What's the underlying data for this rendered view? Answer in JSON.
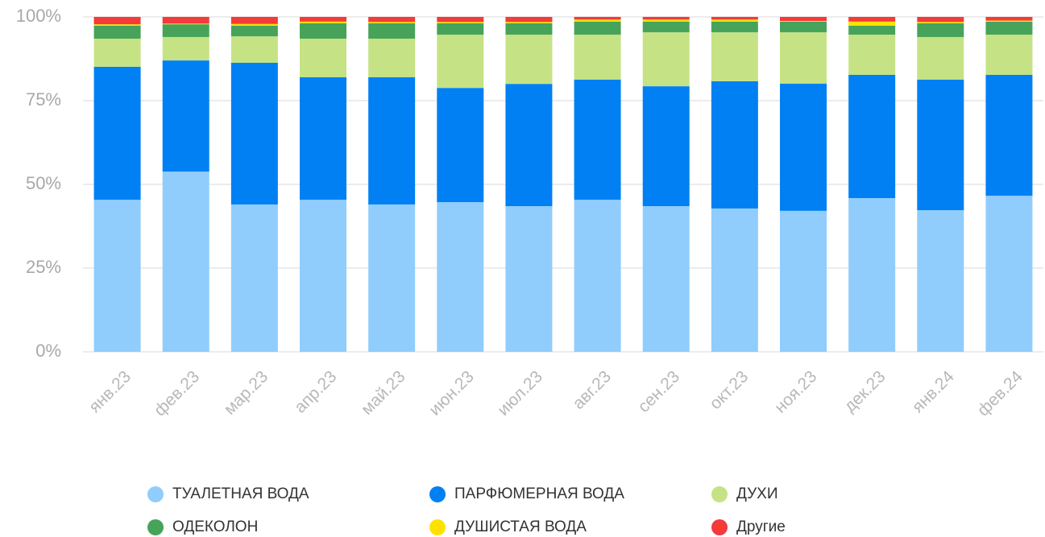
{
  "chart_data": {
    "type": "stacked_bar_percent",
    "categories": [
      "янв.23",
      "фев.23",
      "мар.23",
      "апр.23",
      "май.23",
      "июн.23",
      "июл.23",
      "авг.23",
      "сен.23",
      "окт.23",
      "ноя.23",
      "дек.23",
      "янв.24",
      "фев.24"
    ],
    "series": [
      {
        "name": "ТУАЛЕТНАЯ ВОДА",
        "color": "#90cdfc",
        "values": [
          45.4,
          53.8,
          44.0,
          45.4,
          44.0,
          44.7,
          43.5,
          45.4,
          43.5,
          42.8,
          42.1,
          45.9,
          42.3,
          46.6
        ]
      },
      {
        "name": "ПАРФЮМЕРНАЯ ВОДА",
        "color": "#0080f2",
        "values": [
          39.7,
          33.2,
          42.3,
          36.6,
          38.0,
          34.1,
          36.5,
          35.9,
          35.8,
          38.0,
          38.0,
          36.8,
          39.0,
          36.1
        ]
      },
      {
        "name": "ДУХИ",
        "color": "#c5e384",
        "values": [
          8.4,
          7.0,
          7.9,
          11.5,
          11.5,
          15.9,
          14.7,
          13.4,
          16.1,
          14.6,
          15.3,
          12.0,
          12.7,
          12.0
        ]
      },
      {
        "name": "ОДЕКОЛОН",
        "color": "#47a35a",
        "values": [
          3.9,
          3.8,
          3.2,
          4.6,
          4.6,
          3.4,
          3.4,
          3.9,
          3.2,
          3.2,
          3.2,
          2.7,
          4.1,
          3.9
        ]
      },
      {
        "name": "ДУШИСТАЯ ВОДА",
        "color": "#ffe100",
        "values": [
          0.4,
          0.2,
          0.5,
          0.5,
          0.4,
          0.4,
          0.4,
          0.6,
          0.6,
          0.6,
          0.2,
          1.2,
          0.4,
          0.3
        ]
      },
      {
        "name": "Другие",
        "color": "#f53a3a",
        "values": [
          2.2,
          2.0,
          2.1,
          1.4,
          1.5,
          1.5,
          1.5,
          0.8,
          0.8,
          0.8,
          1.2,
          1.4,
          1.5,
          1.1
        ]
      }
    ],
    "ylim": [
      0,
      100
    ],
    "yticks": [
      {
        "value": 0,
        "label": "0%"
      },
      {
        "value": 25,
        "label": "25%"
      },
      {
        "value": 50,
        "label": "50%"
      },
      {
        "value": 75,
        "label": "75%"
      },
      {
        "value": 100,
        "label": "100%"
      }
    ],
    "grid": true
  }
}
